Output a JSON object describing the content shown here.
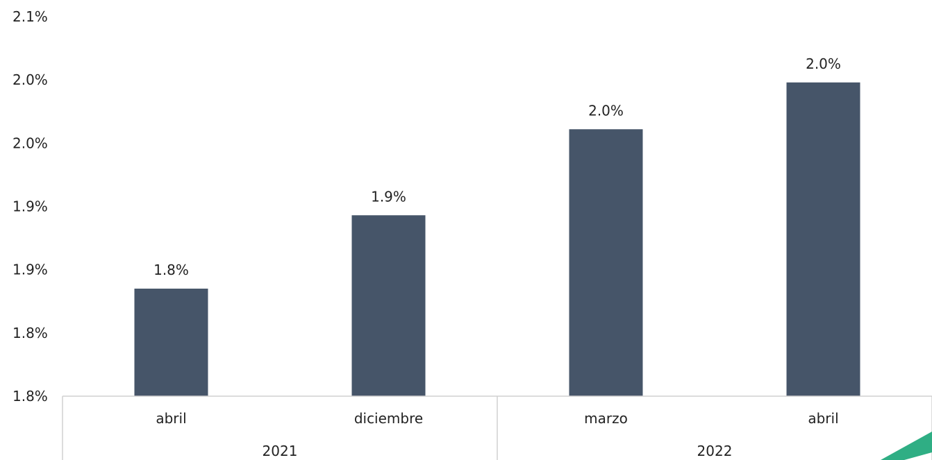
{
  "chart_data": {
    "type": "bar",
    "categories": [
      "abril",
      "diciembre",
      "marzo",
      "abril"
    ],
    "groups": [
      {
        "label": "2021",
        "span": 2
      },
      {
        "label": "2022",
        "span": 2
      }
    ],
    "values": [
      1.835,
      1.893,
      1.961,
      1.998
    ],
    "data_labels": [
      "1.8%",
      "1.9%",
      "2.0%",
      "2.0%"
    ],
    "yaxis": {
      "ticks": [
        1.75,
        1.8,
        1.85,
        1.9,
        1.95,
        2.0,
        2.05
      ],
      "tick_labels": [
        "1.8%",
        "1.8%",
        "1.9%",
        "1.9%",
        "2.0%",
        "2.0%",
        "2.1%"
      ]
    },
    "ylim": [
      1.75,
      2.05
    ],
    "title": "",
    "xlabel": "",
    "ylabel": "",
    "grid": false,
    "colors": {
      "bar": "#465569",
      "axis": "#d0d0d0",
      "accent": "#2fae84"
    }
  }
}
